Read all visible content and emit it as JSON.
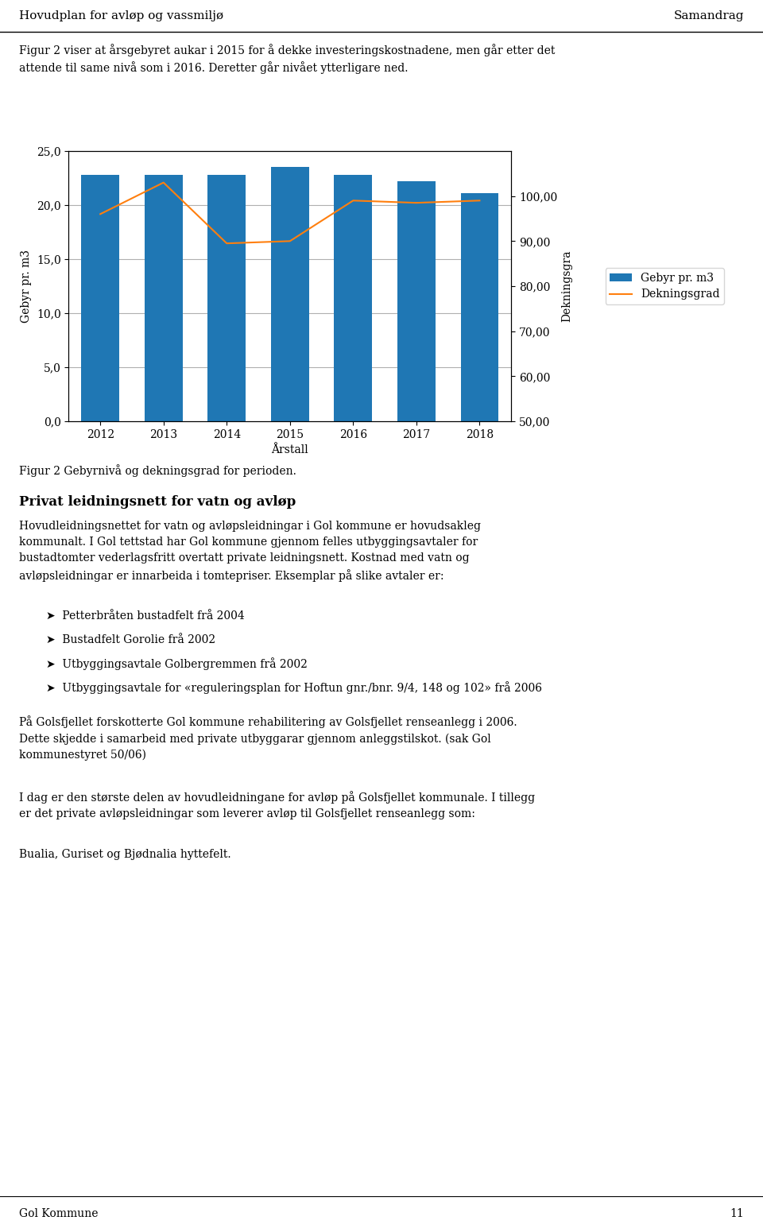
{
  "chart_data": {
    "type": "bar",
    "title": "Figur 2 Gebyrnivå og dekningsgrad for perioden.",
    "categories": [
      "2012",
      "2013",
      "2014",
      "2015",
      "2016",
      "2017",
      "2018"
    ],
    "series": [
      {
        "name": "Gebyr pr. m3",
        "type": "bar",
        "values": [
          22.8,
          22.8,
          22.8,
          23.5,
          22.8,
          22.2,
          21.1
        ]
      },
      {
        "name": "Dekningsgrad",
        "type": "line",
        "axis": "y2",
        "values": [
          96.0,
          103.0,
          89.5,
          90.0,
          99.0,
          98.5,
          99.0
        ]
      }
    ],
    "x_label": "Årstall",
    "y_label": "Gebyr pr. m3",
    "y2_label": "Dekningsgra",
    "ylim": [
      0,
      25
    ],
    "yticks": [
      {
        "value": 0,
        "label": "0,0"
      },
      {
        "value": 5,
        "label": "5,0"
      },
      {
        "value": 10,
        "label": "10,0"
      },
      {
        "value": 15,
        "label": "15,0"
      },
      {
        "value": 20,
        "label": "20,0"
      },
      {
        "value": 25,
        "label": "25,0"
      }
    ],
    "y2lim": [
      50,
      110
    ],
    "y2ticks": [
      {
        "value": 50,
        "label": "50,00"
      },
      {
        "value": 60,
        "label": "60,00"
      },
      {
        "value": 70,
        "label": "70,00"
      },
      {
        "value": 80,
        "label": "80,00"
      },
      {
        "value": 90,
        "label": "90,00"
      },
      {
        "value": 100,
        "label": "100,00"
      }
    ],
    "grid": true,
    "legend": "center left"
  },
  "page": {
    "header_left": "Hovudplan for avløp og vassmiljø",
    "header_right": "Samandrag",
    "intro": "Figur 2 viser at årsgebyret aukar i 2015 for å dekke investeringskostnadene, men går etter det\nattende til same nivå som i 2016. Deretter går nivået ytterligare ned.",
    "section_title": "Privat leidningsnett for vatn og avløp",
    "body": "Hovudleidningsnettet for vatn og avløpsleidningar i Gol kommune er hovudsakleg\nkommunalt. I Gol tettstad har Gol kommune gjennom felles utbyggingsavtaler for\nbustadtomter vederlagsfritt overtatt private leidningsnett. Kostnad med vatn og\navløpsleidningar er innarbeida i tomtepriser. Eksemplar på slike avtaler er:",
    "bullets": [
      "➤  Petterbråten bustadfelt frå 2004",
      "➤  Bustadfelt Gorolie frå 2002",
      "➤  Utbyggingsavtale Golbergremmen frå 2002",
      "➤  Utbyggingsavtale for «reguleringsplan for Hoftun gnr./bnr. 9/4, 148 og 102» frå 2006"
    ],
    "para2": "På Golsfjellet forskotterte Gol kommune rehabilitering av Golsfjellet renseanlegg i 2006.\nDette skjedde i samarbeid med private utbyggarar gjennom anleggstilskot. (sak Gol\nkommunestyret 50/06)",
    "para3": "I dag er den største delen av hovudleidningane for avløp på Golsfjellet kommunale. I tillegg\ner det private avløpsleidningar som leverer avløp til Golsfjellet renseanlegg som:",
    "para4": "Bualia, Guriset og Bjødnalia hyttefelt.",
    "footer_left": "Gol Kommune",
    "footer_right": "11"
  }
}
